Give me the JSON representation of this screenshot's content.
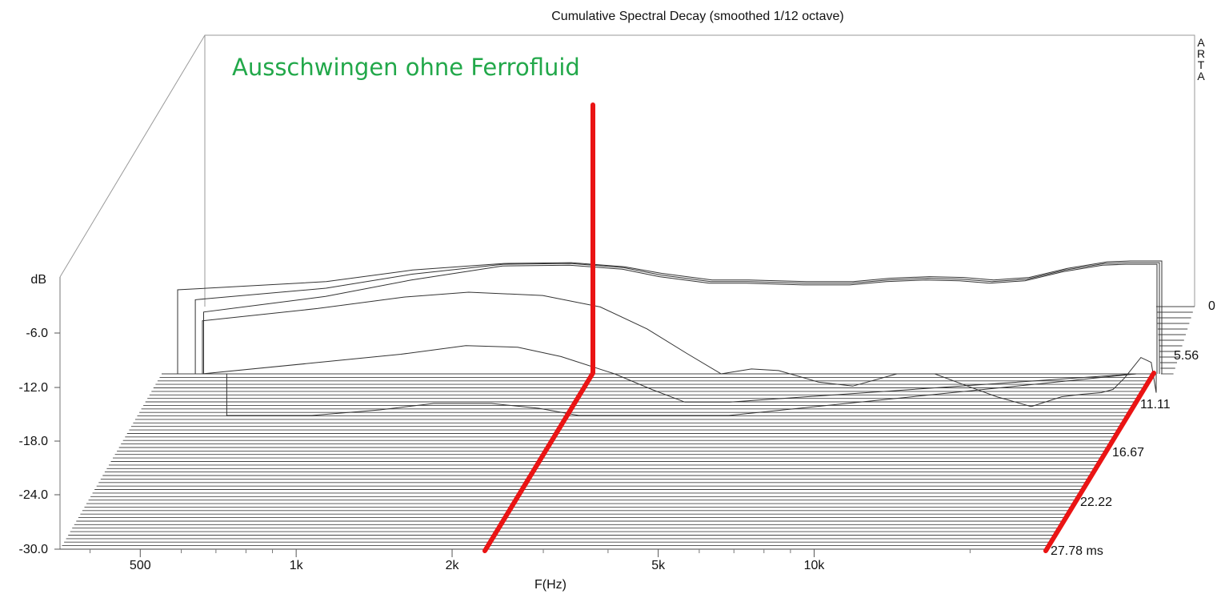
{
  "chart_data": {
    "type": "line",
    "title": "Cumulative Spectral Decay (smoothed 1/12 octave)",
    "brand_vertical": "ARTA",
    "annotation": "Ausschwingen  ohne Ferrofluid",
    "xlabel": "F(Hz)",
    "ylabel": "dB",
    "x_scale": "log",
    "xlim": [
      350,
      28000
    ],
    "ylim": [
      -30,
      0
    ],
    "y_ticks": [
      "-6.0",
      "-12.0",
      "-18.0",
      "-24.0",
      "-30.0"
    ],
    "x_ticks": [
      {
        "label": "500",
        "value": 500
      },
      {
        "label": "1k",
        "value": 1000
      },
      {
        "label": "2k",
        "value": 2000
      },
      {
        "label": "5k",
        "value": 5000
      },
      {
        "label": "10k",
        "value": 10000
      }
    ],
    "time_axis_unit": "ms",
    "time_ticks": [
      {
        "label": "0",
        "value": 0
      },
      {
        "label": "5.56",
        "value": 5.56
      },
      {
        "label": "11.11",
        "value": 11.11
      },
      {
        "label": "16.67",
        "value": 16.67
      },
      {
        "label": "22.22",
        "value": 22.22
      },
      {
        "label": "27.78 ms",
        "value": 27.78
      }
    ],
    "slice_count": 50,
    "floor_db": -12,
    "series": [
      {
        "time_ms": 0,
        "points": [
          [
            560,
            -1.8
          ],
          [
            1000,
            -0.8
          ],
          [
            1400,
            0.6
          ],
          [
            2000,
            1.4
          ],
          [
            2600,
            1.5
          ],
          [
            3200,
            1.0
          ],
          [
            3700,
            0.2
          ],
          [
            4500,
            -0.6
          ],
          [
            5200,
            -0.6
          ],
          [
            6500,
            -0.8
          ],
          [
            7800,
            -0.8
          ],
          [
            9000,
            -0.4
          ],
          [
            10500,
            -0.2
          ],
          [
            12000,
            -0.3
          ],
          [
            13500,
            -0.6
          ],
          [
            15500,
            -0.3
          ],
          [
            18000,
            0.8
          ],
          [
            21000,
            1.6
          ],
          [
            23000,
            1.7
          ],
          [
            26000,
            1.7
          ]
        ]
      },
      {
        "time_ms": 0.556,
        "points": [
          [
            600,
            -3.0
          ],
          [
            1000,
            -1.6
          ],
          [
            1400,
            0.1
          ],
          [
            2000,
            1.3
          ],
          [
            2600,
            1.4
          ],
          [
            3200,
            0.9
          ],
          [
            3700,
            0.0
          ],
          [
            4500,
            -0.8
          ],
          [
            5200,
            -0.8
          ],
          [
            6500,
            -1.0
          ],
          [
            7800,
            -1.0
          ],
          [
            9000,
            -0.6
          ],
          [
            10500,
            -0.4
          ],
          [
            12000,
            -0.5
          ],
          [
            13500,
            -0.8
          ],
          [
            15500,
            -0.5
          ],
          [
            18000,
            0.6
          ],
          [
            21000,
            1.4
          ],
          [
            23000,
            1.5
          ],
          [
            26000,
            1.5
          ]
        ]
      },
      {
        "time_ms": 1.111,
        "points": [
          [
            620,
            -4.5
          ],
          [
            1000,
            -2.6
          ],
          [
            1400,
            -0.6
          ],
          [
            2000,
            1.1
          ],
          [
            2600,
            1.2
          ],
          [
            3200,
            0.7
          ],
          [
            3700,
            -0.2
          ],
          [
            4500,
            -1.0
          ],
          [
            5200,
            -1.0
          ],
          [
            6500,
            -1.2
          ],
          [
            7800,
            -1.2
          ],
          [
            9000,
            -0.8
          ],
          [
            10500,
            -0.6
          ],
          [
            12000,
            -0.7
          ],
          [
            13500,
            -1.0
          ],
          [
            15500,
            -0.7
          ],
          [
            18000,
            0.4
          ],
          [
            21000,
            1.2
          ],
          [
            23000,
            1.3
          ],
          [
            26000,
            1.3
          ]
        ]
      },
      {
        "time_ms": 2.222,
        "points": [
          [
            640,
            -5.5
          ],
          [
            1000,
            -4.0
          ],
          [
            1400,
            -2.6
          ],
          [
            1800,
            -2.0
          ],
          [
            2400,
            -2.4
          ],
          [
            3000,
            -3.8
          ],
          [
            3600,
            -6.5
          ],
          [
            4200,
            -9.5
          ],
          [
            4800,
            -12.0
          ],
          [
            5400,
            -11.4
          ],
          [
            6000,
            -11.6
          ],
          [
            7000,
            -13.0
          ],
          [
            8000,
            -13.5
          ],
          [
            9500,
            -12.0
          ],
          [
            11000,
            -12.0
          ],
          [
            12500,
            -13.5
          ],
          [
            14000,
            -14.8
          ],
          [
            16000,
            -16.0
          ],
          [
            18000,
            -14.8
          ],
          [
            19500,
            -14.5
          ],
          [
            21000,
            -14.3
          ],
          [
            22000,
            -13.9
          ],
          [
            23000,
            -12.5
          ],
          [
            24500,
            -10.0
          ],
          [
            25500,
            -10.6
          ],
          [
            26800,
            -14.3
          ],
          [
            28000,
            -13.5
          ],
          [
            29500,
            -12.5
          ]
        ]
      },
      {
        "time_ms": 3.333,
        "points": [
          [
            650,
            -12.0
          ],
          [
            1000,
            -10.6
          ],
          [
            1400,
            -9.5
          ],
          [
            1800,
            -8.4
          ],
          [
            2200,
            -8.6
          ],
          [
            2600,
            -9.8
          ],
          [
            3200,
            -12.0
          ],
          [
            3700,
            -14.0
          ],
          [
            4200,
            -15.6
          ],
          [
            5000,
            -15.6
          ]
        ]
      },
      {
        "time_ms": 4.444,
        "points": [
          [
            720,
            -17.2
          ],
          [
            1000,
            -17.2
          ],
          [
            1300,
            -16.5
          ],
          [
            1600,
            -15.7
          ],
          [
            2000,
            -15.7
          ],
          [
            2400,
            -16.3
          ],
          [
            2800,
            -17.2
          ],
          [
            5000,
            -17.2
          ]
        ]
      }
    ]
  }
}
